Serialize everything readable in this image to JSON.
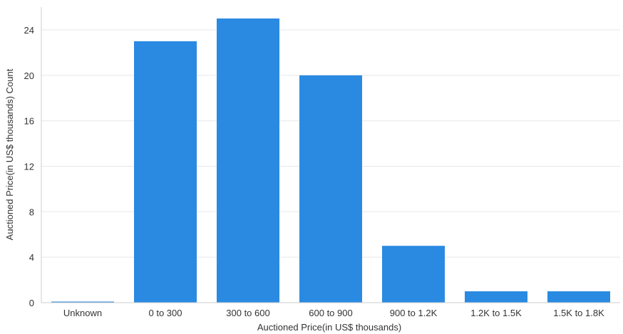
{
  "chart_data": {
    "type": "bar",
    "categories": [
      "Unknown",
      "0 to 300",
      "300 to 600",
      "600 to 900",
      "900 to 1.2K",
      "1.2K to 1.5K",
      "1.5K to 1.8K"
    ],
    "values": [
      0,
      23,
      25,
      20,
      5,
      1,
      1
    ],
    "xlabel": "Auctioned Price(in US$ thousands)",
    "ylabel": "Auctioned Price(in US$ thousands) Count",
    "ylim": [
      0,
      26
    ],
    "yticks": [
      0,
      4,
      8,
      12,
      16,
      20,
      24
    ],
    "grid": "horizontal",
    "bar_color": "#2a8ae2"
  }
}
